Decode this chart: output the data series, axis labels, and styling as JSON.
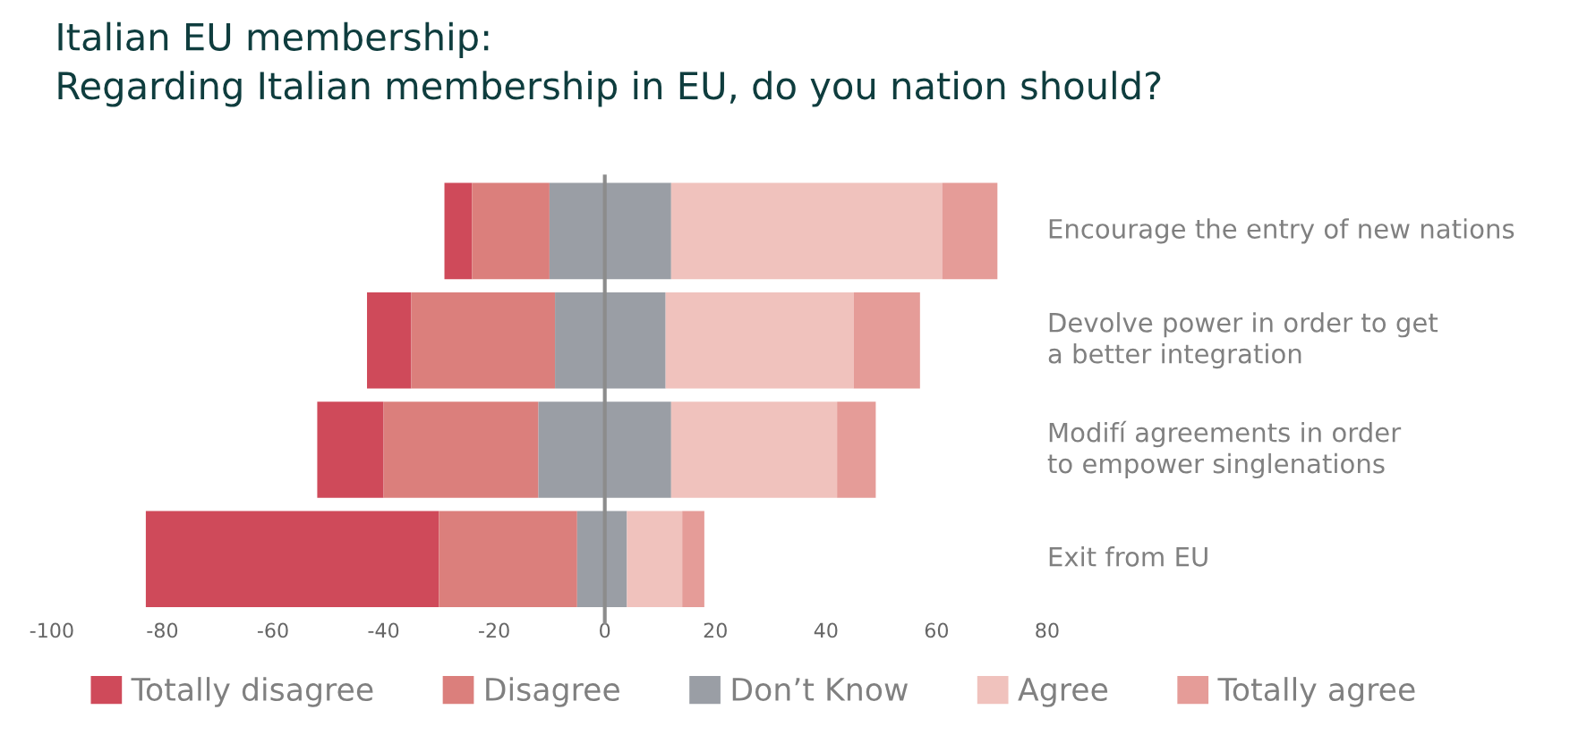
{
  "chart_data": {
    "type": "bar",
    "orientation": "horizontal",
    "title": "Italian EU membership:\nRegarding Italian membership in EU, do you nation should?",
    "categories": [
      "Encourage the entry of new nations",
      "Devolve power in order to get\na better integration",
      "Modifí agreements in order\nto empower singlenations",
      "Exit from EU"
    ],
    "series": [
      {
        "name": "Totally disagree",
        "color": "#cf4a5a",
        "base": [
          -29,
          -43,
          -52,
          -83
        ],
        "values": [
          5,
          8,
          12,
          53
        ]
      },
      {
        "name": "Disagree",
        "color": "#db7f7c",
        "base": [
          -24,
          -35,
          -40,
          -30
        ],
        "values": [
          14,
          26,
          28,
          25
        ]
      },
      {
        "name": "Don’t Know",
        "color": "#9a9ea5",
        "base": [
          -10,
          -9,
          -12,
          -5
        ],
        "values": [
          22,
          20,
          24,
          9
        ]
      },
      {
        "name": "Agree",
        "color": "#f0c2bd",
        "base": [
          12,
          11,
          12,
          4
        ],
        "values": [
          49,
          34,
          30,
          10
        ]
      },
      {
        "name": "Totally agree",
        "color": "#e59c98",
        "base": [
          61,
          45,
          42,
          14
        ],
        "values": [
          10,
          12,
          7,
          4
        ]
      }
    ],
    "xlim": [
      -100,
      80
    ],
    "xticks": [
      -100,
      -80,
      -60,
      -40,
      -20,
      0,
      20,
      40,
      60,
      80
    ],
    "tick_labels": "x",
    "ref_lines": [
      {
        "axis": "x",
        "value": 0,
        "color": "#8c8c8c"
      }
    ],
    "legend": "bottom"
  }
}
